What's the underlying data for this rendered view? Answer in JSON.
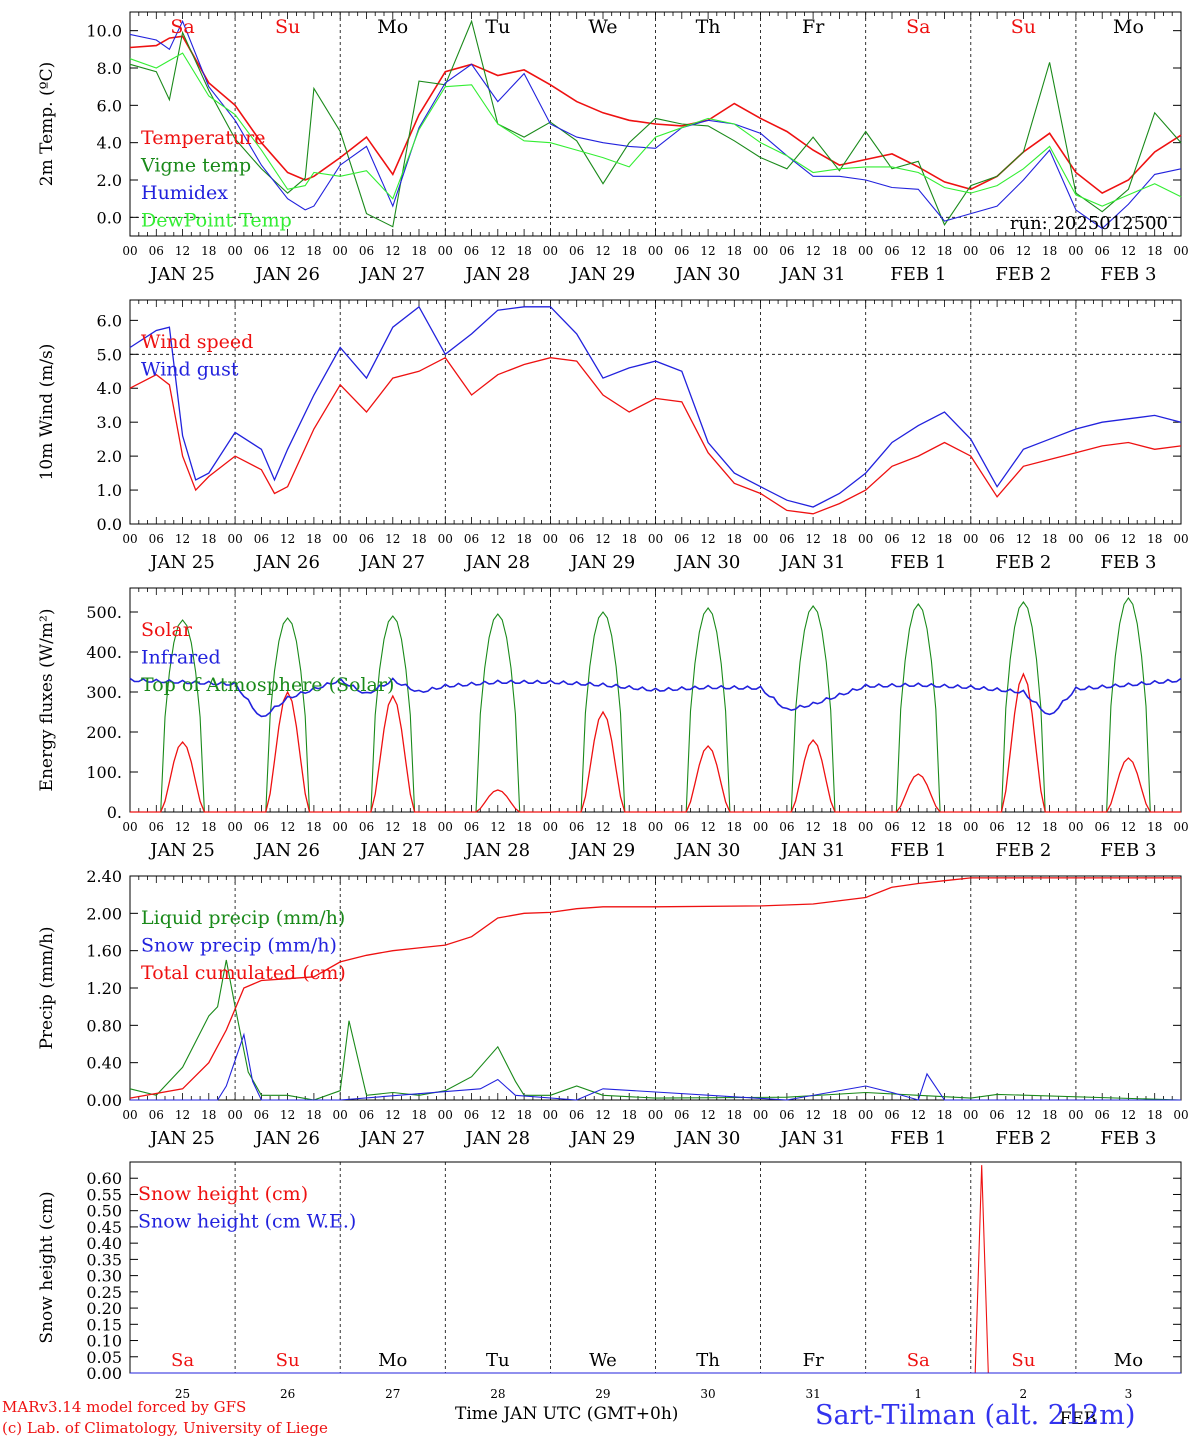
{
  "days": [
    "Sa",
    "Su",
    "Mo",
    "Tu",
    "We",
    "Th",
    "Fr",
    "Sa",
    "Su",
    "Mo"
  ],
  "day_colors": [
    "#ee1111",
    "#ee1111",
    "#000000",
    "#000000",
    "#000000",
    "#000000",
    "#000000",
    "#ee1111",
    "#ee1111",
    "#000000"
  ],
  "date_labels": [
    "JAN 25",
    "JAN 26",
    "JAN 27",
    "JAN 28",
    "JAN 29",
    "JAN 30",
    "JAN 31",
    "FEB  1",
    "FEB  2",
    "FEB  3"
  ],
  "day_numbers": [
    "25",
    "26",
    "27",
    "28",
    "29",
    "30",
    "31",
    "1",
    "2",
    "3"
  ],
  "hour_labels": [
    "00",
    "06",
    "12",
    "18"
  ],
  "run_label": "run: 2025012500",
  "time_label": "Time  JAN UTC (GMT+0h)",
  "station": "Sart-Tilman (alt. 212m)",
  "extra_label": "FEB",
  "credits": [
    "MARv3.14 model forced by GFS",
    "(c) Lab. of Climatology, University of Liege"
  ],
  "colors": {
    "red": "#ee1111",
    "green": "#1a8a1a",
    "blue": "#2222dd",
    "lightgreen": "#33ee33"
  },
  "chart_data": [
    {
      "type": "line",
      "ylabel": "2m Temp. (ºC)",
      "ylim": [
        -1.0,
        11.0
      ],
      "yticks": [
        0.0,
        2.0,
        4.0,
        6.0,
        8.0,
        10.0
      ],
      "tick_labels": [
        "0.0",
        "2.0",
        "4.0",
        "6.0",
        "8.0",
        "10.0"
      ],
      "dashed_y": 0.0,
      "x": [
        0,
        6,
        9,
        12,
        18,
        24,
        30,
        36,
        40,
        42,
        48,
        54,
        60,
        66,
        72,
        78,
        84,
        90,
        96,
        102,
        108,
        114,
        120,
        126,
        132,
        138,
        144,
        150,
        156,
        162,
        168,
        174,
        180,
        186,
        192,
        198,
        204,
        210,
        216,
        222,
        228,
        234,
        240
      ],
      "series": [
        {
          "name": "Temperature",
          "color": "#ee1111",
          "values": [
            9.1,
            9.2,
            9.6,
            9.7,
            7.2,
            6.0,
            4.0,
            2.4,
            2.0,
            2.2,
            3.2,
            4.3,
            2.3,
            5.5,
            7.8,
            8.2,
            7.6,
            7.9,
            7.1,
            6.2,
            5.6,
            5.2,
            5.0,
            4.9,
            5.2,
            6.1,
            5.3,
            4.6,
            3.6,
            5.8,
            5.0,
            5.2,
            6.2,
            4.0,
            2.4,
            2.5,
            3.3,
            4.0,
            5.1,
            4.4,
            3.8,
            3.3,
            3.0
          ]
        },
        {
          "name": "Vigne temp",
          "color": "#1a8a1a",
          "values": [
            8.2,
            7.8,
            6.3,
            9.9,
            6.8,
            4.2,
            2.6,
            1.3,
            2.1,
            6.9,
            4.6,
            0.2,
            -0.5,
            7.3,
            7.1,
            10.5,
            5.0,
            4.3,
            5.1,
            4.1,
            1.8,
            4.0,
            5.3,
            5.0,
            4.9,
            4.1,
            3.2,
            2.6,
            4.3,
            7.9,
            4.1,
            3.0,
            8.6,
            4.0,
            -0.9,
            2.0,
            3.0,
            4.0,
            7.8,
            3.8,
            3.2,
            2.6,
            2.6
          ]
        },
        {
          "name": "Humidex",
          "color": "#2222dd",
          "values": [
            9.8,
            9.5,
            9.0,
            10.5,
            7.0,
            5.2,
            2.8,
            1.0,
            0.4,
            0.6,
            2.8,
            3.8,
            0.6,
            4.8,
            7.2,
            8.2,
            6.2,
            7.7,
            5.0,
            4.3,
            4.0,
            3.8,
            3.7,
            4.8,
            5.2,
            5.0,
            4.5,
            3.3,
            2.2,
            4.7,
            4.2,
            4.1,
            5.0,
            3.6,
            1.8,
            1.7,
            2.4,
            3.0,
            4.3,
            3.6,
            2.8,
            2.4,
            2.2
          ]
        },
        {
          "name": "DewPoint Temp",
          "color": "#33ee33",
          "values": [
            8.5,
            8.0,
            8.4,
            8.8,
            6.5,
            5.5,
            3.6,
            1.5,
            1.7,
            2.4,
            2.2,
            2.5,
            1.0,
            4.7,
            7.0,
            7.1,
            5.0,
            4.1,
            4.0,
            3.6,
            3.2,
            2.7,
            4.3,
            4.8,
            5.3,
            5.0,
            4.0,
            3.3,
            2.4,
            3.6,
            3.8,
            3.6,
            4.4,
            2.9,
            2.4,
            2.4,
            3.3,
            3.9,
            4.9,
            4.1,
            3.5,
            3.0,
            2.9
          ]
        }
      ],
      "ext_x": [
        162,
        168,
        174,
        180,
        186,
        192,
        198,
        204,
        210,
        216,
        222,
        228,
        234,
        240
      ],
      "ext_series": [
        [
          2.8,
          3.1,
          3.4,
          2.7,
          1.9,
          1.5,
          2.2,
          3.5,
          4.5,
          2.4,
          1.3,
          2.0,
          3.5,
          4.4
        ],
        [
          2.5,
          4.6,
          2.6,
          3.0,
          -0.4,
          1.7,
          2.2,
          3.5,
          8.3,
          1.3,
          0.3,
          1.5,
          5.6,
          4.0
        ],
        [
          2.2,
          2.0,
          1.6,
          1.5,
          -0.2,
          0.2,
          0.6,
          2.0,
          3.6,
          0.4,
          -0.6,
          0.7,
          2.3,
          2.6
        ],
        [
          2.6,
          2.7,
          2.7,
          2.4,
          1.6,
          1.3,
          1.7,
          2.6,
          3.8,
          1.2,
          0.6,
          1.2,
          1.8,
          1.1
        ]
      ]
    },
    {
      "type": "line",
      "ylabel": "10m Wind (m/s)",
      "ylim": [
        0.0,
        6.6
      ],
      "yticks": [
        0.0,
        1.0,
        2.0,
        3.0,
        4.0,
        5.0,
        6.0
      ],
      "tick_labels": [
        "0.0",
        "1.0",
        "2.0",
        "3.0",
        "4.0",
        "5.0",
        "6.0"
      ],
      "dashed_y": 5.0,
      "x": [
        0,
        6,
        9,
        12,
        15,
        18,
        24,
        30,
        33,
        36,
        42,
        48,
        54,
        60,
        66,
        72,
        78,
        84,
        90,
        96,
        102,
        108,
        114,
        120,
        126,
        132,
        138,
        144,
        150,
        156,
        162,
        168,
        174,
        180,
        186,
        192,
        198,
        204,
        210,
        216,
        222,
        228,
        234,
        240
      ],
      "series": [
        {
          "name": "Wind speed",
          "color": "#ee1111",
          "values": [
            4.0,
            4.4,
            4.1,
            2.0,
            1.0,
            1.4,
            2.0,
            1.6,
            0.9,
            1.1,
            2.8,
            4.1,
            3.3,
            4.3,
            4.5,
            4.9,
            3.8,
            4.4,
            4.7,
            4.9,
            4.8,
            3.8,
            3.3,
            3.7,
            3.6,
            2.1,
            1.2,
            0.9,
            0.4,
            0.3,
            0.6,
            1.0,
            1.7,
            2.0,
            2.4,
            2.0,
            0.8,
            1.7,
            1.9,
            2.1,
            2.3,
            2.4,
            2.2,
            2.3
          ]
        },
        {
          "name": "Wind gust",
          "color": "#2222dd",
          "values": [
            5.2,
            5.7,
            5.8,
            2.6,
            1.3,
            1.5,
            2.7,
            2.2,
            1.3,
            2.2,
            3.8,
            5.2,
            4.3,
            5.8,
            6.4,
            5.0,
            5.6,
            6.3,
            6.4,
            6.4,
            5.6,
            4.3,
            4.6,
            4.8,
            4.5,
            2.4,
            1.5,
            1.1,
            0.7,
            0.5,
            0.9,
            1.5,
            2.4,
            2.9,
            3.3,
            2.5,
            1.1,
            2.2,
            2.5,
            2.8,
            3.0,
            3.1,
            3.2,
            3.0
          ]
        }
      ]
    },
    {
      "type": "line",
      "ylabel": "Energy fluxes (W/m²)",
      "ylim": [
        0,
        560
      ],
      "yticks": [
        0,
        100,
        200,
        300,
        400,
        500
      ],
      "tick_labels": [
        "0.",
        "100.",
        "200.",
        "300.",
        "400.",
        "500."
      ],
      "series": [
        {
          "name": "Solar",
          "color": "#ee1111",
          "daily_peak": [
            175,
            300,
            290,
            55,
            250,
            165,
            180,
            95,
            345,
            135
          ]
        },
        {
          "name": "Infrared",
          "color": "#2222dd",
          "x": [
            0,
            12,
            24,
            30,
            36,
            48,
            54,
            60,
            66,
            72,
            84,
            96,
            108,
            120,
            132,
            144,
            150,
            156,
            168,
            180,
            192,
            204,
            210,
            216,
            228,
            240
          ],
          "values": [
            330,
            325,
            320,
            235,
            285,
            330,
            295,
            330,
            300,
            315,
            325,
            325,
            318,
            305,
            312,
            310,
            255,
            270,
            315,
            318,
            312,
            300,
            240,
            308,
            318,
            330
          ]
        },
        {
          "name": "Top of Atmosphere (Solar)",
          "color": "#1a8a1a",
          "daily_peak": [
            480,
            485,
            490,
            495,
            500,
            510,
            515,
            520,
            525,
            535
          ]
        }
      ]
    },
    {
      "type": "line",
      "ylabel": "Precip (mm/h)",
      "ylim": [
        0.0,
        2.4
      ],
      "yticks": [
        0.0,
        0.4,
        0.8,
        1.2,
        1.6,
        2.0,
        2.4
      ],
      "tick_labels": [
        "0.00",
        "0.40",
        "0.80",
        "1.20",
        "1.60",
        "2.00",
        "2.40"
      ],
      "series": [
        {
          "name": "Liquid precip (mm/h)",
          "color": "#1a8a1a",
          "x": [
            0,
            6,
            12,
            18,
            20,
            22,
            24,
            27,
            30,
            36,
            42,
            48,
            50,
            54,
            60,
            66,
            72,
            78,
            84,
            88,
            90,
            96,
            102,
            108,
            120,
            150,
            168,
            180,
            192,
            198,
            240
          ],
          "values": [
            0.12,
            0.05,
            0.35,
            0.9,
            1.0,
            1.5,
            1.0,
            0.3,
            0.05,
            0.05,
            0.0,
            0.1,
            0.85,
            0.05,
            0.08,
            0.05,
            0.1,
            0.25,
            0.57,
            0.2,
            0.05,
            0.05,
            0.15,
            0.05,
            0.02,
            0.03,
            0.08,
            0.05,
            0.02,
            0.06,
            0.0
          ]
        },
        {
          "name": "Snow precip (mm/h)",
          "color": "#2222dd",
          "x": [
            0,
            20,
            22,
            26,
            28,
            30,
            48,
            80,
            84,
            88,
            102,
            108,
            150,
            168,
            174,
            180,
            182,
            186,
            192,
            240
          ],
          "values": [
            0.0,
            0.0,
            0.15,
            0.7,
            0.2,
            0.0,
            0.0,
            0.12,
            0.22,
            0.05,
            0.0,
            0.12,
            0.0,
            0.15,
            0.08,
            0.0,
            0.28,
            0.0,
            0.0,
            0.0
          ]
        },
        {
          "name": "Total cumulated (cm)",
          "color": "#ee1111",
          "x": [
            0,
            12,
            18,
            22,
            26,
            30,
            36,
            42,
            48,
            54,
            60,
            66,
            72,
            78,
            84,
            90,
            96,
            102,
            108,
            120,
            144,
            156,
            168,
            174,
            180,
            186,
            192,
            240
          ],
          "values": [
            0.02,
            0.12,
            0.4,
            0.75,
            1.2,
            1.28,
            1.3,
            1.32,
            1.48,
            1.55,
            1.6,
            1.63,
            1.66,
            1.75,
            1.95,
            2.0,
            2.01,
            2.05,
            2.07,
            2.07,
            2.08,
            2.1,
            2.17,
            2.28,
            2.32,
            2.35,
            2.38,
            2.38
          ]
        }
      ]
    },
    {
      "type": "line",
      "ylabel": "Snow height (cm)",
      "ylim": [
        0.0,
        0.65
      ],
      "yticks": [
        0.0,
        0.05,
        0.1,
        0.15,
        0.2,
        0.25,
        0.3,
        0.35,
        0.4,
        0.45,
        0.5,
        0.55,
        0.6
      ],
      "tick_labels": [
        "0.00",
        "0.05",
        "0.10",
        "0.15",
        "0.20",
        "0.25",
        "0.30",
        "0.35",
        "0.40",
        "0.45",
        "0.50",
        "0.55",
        "0.60"
      ],
      "series": [
        {
          "name": "Snow height (cm)",
          "color": "#ee1111",
          "x": [
            0,
            193,
            194.5,
            196,
            240
          ],
          "values": [
            0,
            0,
            0.64,
            0,
            0
          ]
        },
        {
          "name": "Snow height (cm W.E.)",
          "color": "#2222dd",
          "x": [
            0,
            240
          ],
          "values": [
            0,
            0
          ]
        }
      ]
    }
  ]
}
